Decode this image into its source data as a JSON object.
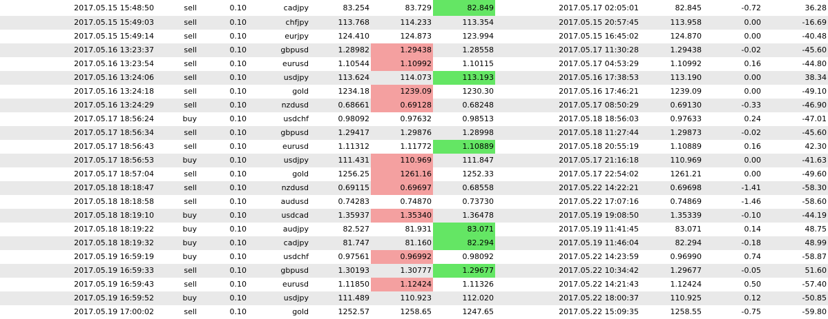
{
  "colors": {
    "alt_row": "#e9e9e9",
    "stop_loss_hit": "#f4a0a0",
    "take_profit_hit": "#64e664"
  },
  "trades": [
    {
      "open_time": "2017.05.15 15:48:50",
      "type": "sell",
      "size": "0.10",
      "symbol": "cadjpy",
      "open_price": "83.254",
      "sl": "83.729",
      "tp": "82.849",
      "close_time": "2017.05.17 02:05:01",
      "close_price": "82.845",
      "swap": "-0.72",
      "profit": "36.28",
      "hit": "tp"
    },
    {
      "open_time": "2017.05.15 15:49:03",
      "type": "sell",
      "size": "0.10",
      "symbol": "chfjpy",
      "open_price": "113.768",
      "sl": "114.233",
      "tp": "113.354",
      "close_time": "2017.05.15 20:57:45",
      "close_price": "113.958",
      "swap": "0.00",
      "profit": "-16.69",
      "hit": ""
    },
    {
      "open_time": "2017.05.15 15:49:14",
      "type": "sell",
      "size": "0.10",
      "symbol": "eurjpy",
      "open_price": "124.410",
      "sl": "124.873",
      "tp": "123.994",
      "close_time": "2017.05.15 16:45:02",
      "close_price": "124.870",
      "swap": "0.00",
      "profit": "-40.48",
      "hit": ""
    },
    {
      "open_time": "2017.05.16 13:23:37",
      "type": "sell",
      "size": "0.10",
      "symbol": "gbpusd",
      "open_price": "1.28982",
      "sl": "1.29438",
      "tp": "1.28558",
      "close_time": "2017.05.17 11:30:28",
      "close_price": "1.29438",
      "swap": "-0.02",
      "profit": "-45.60",
      "hit": "sl"
    },
    {
      "open_time": "2017.05.16 13:23:54",
      "type": "sell",
      "size": "0.10",
      "symbol": "eurusd",
      "open_price": "1.10544",
      "sl": "1.10992",
      "tp": "1.10115",
      "close_time": "2017.05.17 04:53:29",
      "close_price": "1.10992",
      "swap": "0.16",
      "profit": "-44.80",
      "hit": "sl"
    },
    {
      "open_time": "2017.05.16 13:24:06",
      "type": "sell",
      "size": "0.10",
      "symbol": "usdjpy",
      "open_price": "113.624",
      "sl": "114.073",
      "tp": "113.193",
      "close_time": "2017.05.16 17:38:53",
      "close_price": "113.190",
      "swap": "0.00",
      "profit": "38.34",
      "hit": "tp"
    },
    {
      "open_time": "2017.05.16 13:24:18",
      "type": "sell",
      "size": "0.10",
      "symbol": "gold",
      "open_price": "1234.18",
      "sl": "1239.09",
      "tp": "1230.30",
      "close_time": "2017.05.16 17:46:21",
      "close_price": "1239.09",
      "swap": "0.00",
      "profit": "-49.10",
      "hit": "sl"
    },
    {
      "open_time": "2017.05.16 13:24:29",
      "type": "sell",
      "size": "0.10",
      "symbol": "nzdusd",
      "open_price": "0.68661",
      "sl": "0.69128",
      "tp": "0.68248",
      "close_time": "2017.05.17 08:50:29",
      "close_price": "0.69130",
      "swap": "-0.33",
      "profit": "-46.90",
      "hit": "sl"
    },
    {
      "open_time": "2017.05.17 18:56:24",
      "type": "buy",
      "size": "0.10",
      "symbol": "usdchf",
      "open_price": "0.98092",
      "sl": "0.97632",
      "tp": "0.98513",
      "close_time": "2017.05.18 18:56:03",
      "close_price": "0.97633",
      "swap": "0.24",
      "profit": "-47.01",
      "hit": ""
    },
    {
      "open_time": "2017.05.17 18:56:34",
      "type": "sell",
      "size": "0.10",
      "symbol": "gbpusd",
      "open_price": "1.29417",
      "sl": "1.29876",
      "tp": "1.28998",
      "close_time": "2017.05.18 11:27:44",
      "close_price": "1.29873",
      "swap": "-0.02",
      "profit": "-45.60",
      "hit": ""
    },
    {
      "open_time": "2017.05.17 18:56:43",
      "type": "sell",
      "size": "0.10",
      "symbol": "eurusd",
      "open_price": "1.11312",
      "sl": "1.11772",
      "tp": "1.10889",
      "close_time": "2017.05.18 20:55:19",
      "close_price": "1.10889",
      "swap": "0.16",
      "profit": "42.30",
      "hit": "tp"
    },
    {
      "open_time": "2017.05.17 18:56:53",
      "type": "buy",
      "size": "0.10",
      "symbol": "usdjpy",
      "open_price": "111.431",
      "sl": "110.969",
      "tp": "111.847",
      "close_time": "2017.05.17 21:16:18",
      "close_price": "110.969",
      "swap": "0.00",
      "profit": "-41.63",
      "hit": "sl"
    },
    {
      "open_time": "2017.05.17 18:57:04",
      "type": "sell",
      "size": "0.10",
      "symbol": "gold",
      "open_price": "1256.25",
      "sl": "1261.16",
      "tp": "1252.33",
      "close_time": "2017.05.17 22:54:02",
      "close_price": "1261.21",
      "swap": "0.00",
      "profit": "-49.60",
      "hit": "sl"
    },
    {
      "open_time": "2017.05.18 18:18:47",
      "type": "sell",
      "size": "0.10",
      "symbol": "nzdusd",
      "open_price": "0.69115",
      "sl": "0.69697",
      "tp": "0.68558",
      "close_time": "2017.05.22 14:22:21",
      "close_price": "0.69698",
      "swap": "-1.41",
      "profit": "-58.30",
      "hit": "sl"
    },
    {
      "open_time": "2017.05.18 18:18:58",
      "type": "sell",
      "size": "0.10",
      "symbol": "audusd",
      "open_price": "0.74283",
      "sl": "0.74870",
      "tp": "0.73730",
      "close_time": "2017.05.22 17:07:16",
      "close_price": "0.74869",
      "swap": "-1.46",
      "profit": "-58.60",
      "hit": ""
    },
    {
      "open_time": "2017.05.18 18:19:10",
      "type": "buy",
      "size": "0.10",
      "symbol": "usdcad",
      "open_price": "1.35937",
      "sl": "1.35340",
      "tp": "1.36478",
      "close_time": "2017.05.19 19:08:50",
      "close_price": "1.35339",
      "swap": "-0.10",
      "profit": "-44.19",
      "hit": "sl"
    },
    {
      "open_time": "2017.05.18 18:19:22",
      "type": "buy",
      "size": "0.10",
      "symbol": "audjpy",
      "open_price": "82.527",
      "sl": "81.931",
      "tp": "83.071",
      "close_time": "2017.05.19 11:41:45",
      "close_price": "83.071",
      "swap": "0.14",
      "profit": "48.75",
      "hit": "tp"
    },
    {
      "open_time": "2017.05.18 18:19:32",
      "type": "buy",
      "size": "0.10",
      "symbol": "cadjpy",
      "open_price": "81.747",
      "sl": "81.160",
      "tp": "82.294",
      "close_time": "2017.05.19 11:46:04",
      "close_price": "82.294",
      "swap": "-0.18",
      "profit": "48.99",
      "hit": "tp"
    },
    {
      "open_time": "2017.05.19 16:59:19",
      "type": "buy",
      "size": "0.10",
      "symbol": "usdchf",
      "open_price": "0.97561",
      "sl": "0.96992",
      "tp": "0.98092",
      "close_time": "2017.05.22 14:23:59",
      "close_price": "0.96990",
      "swap": "0.74",
      "profit": "-58.87",
      "hit": "sl"
    },
    {
      "open_time": "2017.05.19 16:59:33",
      "type": "sell",
      "size": "0.10",
      "symbol": "gbpusd",
      "open_price": "1.30193",
      "sl": "1.30777",
      "tp": "1.29677",
      "close_time": "2017.05.22 10:34:42",
      "close_price": "1.29677",
      "swap": "-0.05",
      "profit": "51.60",
      "hit": "tp"
    },
    {
      "open_time": "2017.05.19 16:59:43",
      "type": "sell",
      "size": "0.10",
      "symbol": "eurusd",
      "open_price": "1.11850",
      "sl": "1.12424",
      "tp": "1.11326",
      "close_time": "2017.05.22 14:21:43",
      "close_price": "1.12424",
      "swap": "0.50",
      "profit": "-57.40",
      "hit": "sl"
    },
    {
      "open_time": "2017.05.19 16:59:52",
      "type": "buy",
      "size": "0.10",
      "symbol": "usdjpy",
      "open_price": "111.489",
      "sl": "110.923",
      "tp": "112.020",
      "close_time": "2017.05.22 18:00:37",
      "close_price": "110.925",
      "swap": "0.12",
      "profit": "-50.85",
      "hit": ""
    },
    {
      "open_time": "2017.05.19 17:00:02",
      "type": "sell",
      "size": "0.10",
      "symbol": "gold",
      "open_price": "1252.57",
      "sl": "1258.65",
      "tp": "1247.65",
      "close_time": "2017.05.22 15:09:35",
      "close_price": "1258.55",
      "swap": "-0.75",
      "profit": "-59.80",
      "hit": ""
    }
  ]
}
